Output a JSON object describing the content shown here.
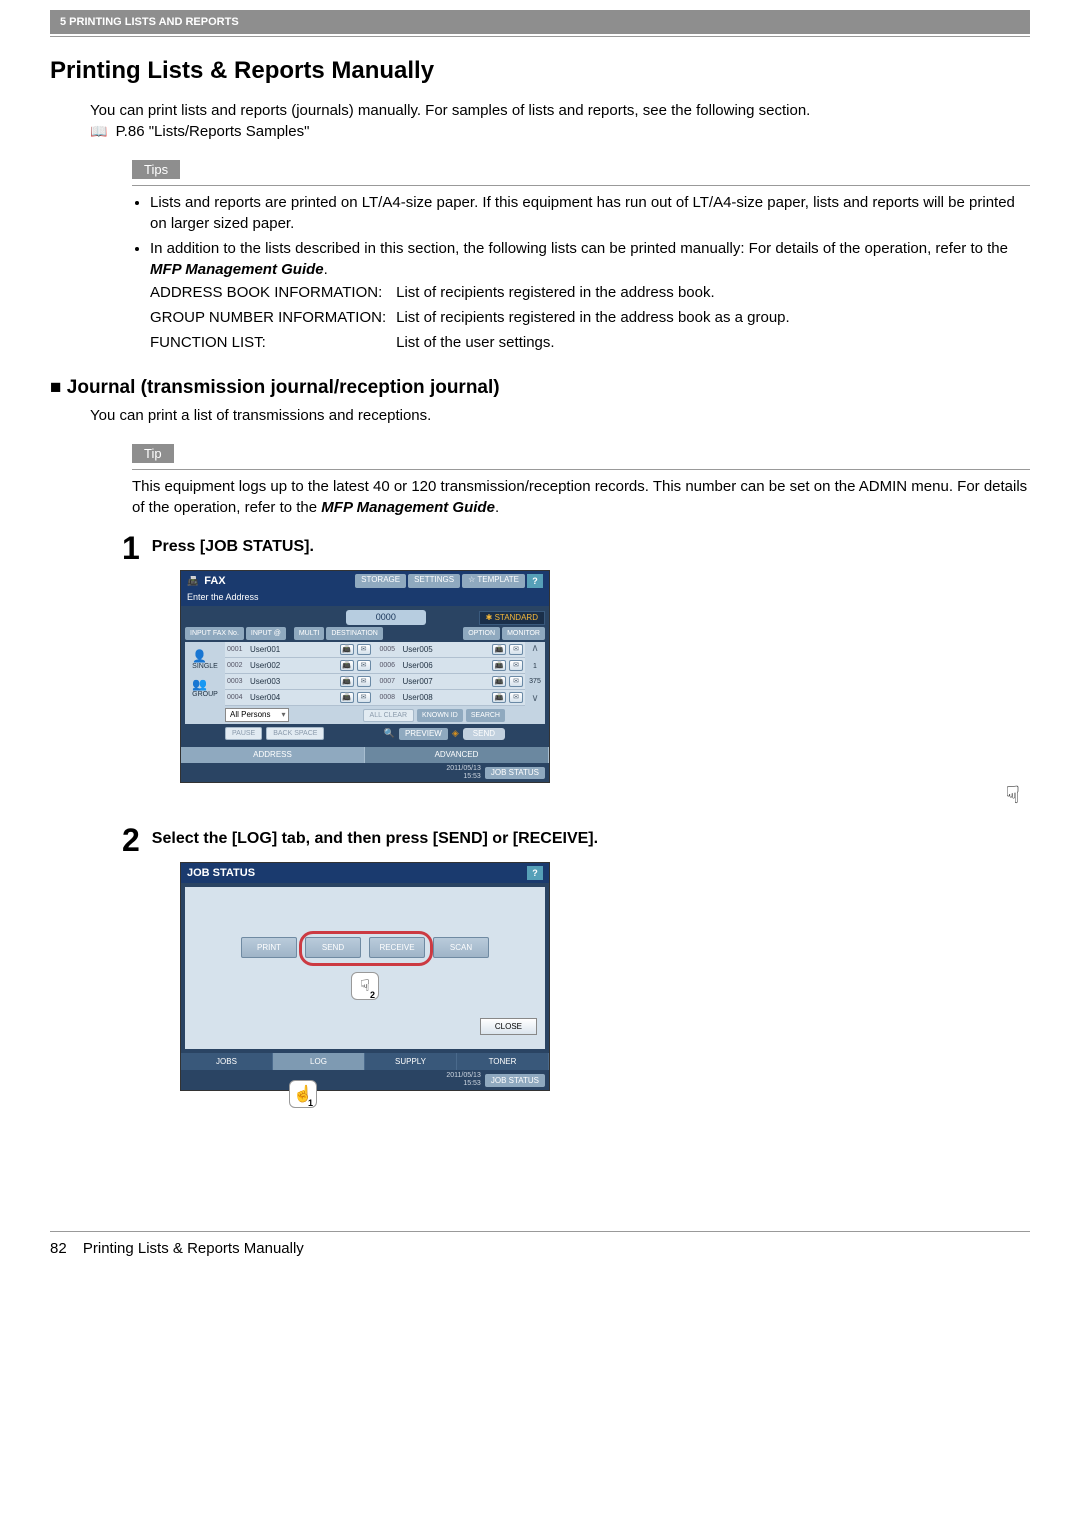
{
  "header": {
    "chapter": "5 PRINTING LISTS AND REPORTS"
  },
  "page": {
    "title": "Printing Lists & Reports Manually",
    "intro1": "You can print lists and reports (journals) manually. For samples of lists and reports, see the following section.",
    "ref_link": "P.86 \"Lists/Reports Samples\"",
    "tips_label": "Tips",
    "tip_label": "Tip",
    "tips": {
      "bullet1": "Lists and reports are printed on LT/A4-size paper. If this equipment has run out of LT/A4-size paper, lists and reports will be printed on larger sized paper.",
      "bullet2_a": "In addition to the lists described in this section, the following lists can be printed manually: For details of the operation, refer to the ",
      "bullet2_b": "MFP Management Guide",
      "bullet2_c": ".",
      "row1_k": "ADDRESS BOOK INFORMATION:",
      "row1_v": "List of recipients registered in the address book.",
      "row2_k": "GROUP NUMBER INFORMATION:",
      "row2_v": "List of recipients registered in the address book as a group.",
      "row3_k": "FUNCTION LIST:",
      "row3_v": "List of the user settings."
    }
  },
  "subsection": {
    "title": "Journal (transmission journal/reception journal)",
    "desc": "You can print a list of transmissions and receptions.",
    "tip_a": "This equipment logs up to the latest 40 or 120 transmission/reception records. This number can be set on the ADMIN menu. For details of the operation, refer to the ",
    "tip_b": "MFP Management Guide",
    "tip_c": "."
  },
  "steps": {
    "s1_num": "1",
    "s1_text": "Press [JOB STATUS].",
    "s2_num": "2",
    "s2_text": "Select the [LOG] tab, and then press [SEND] or [RECEIVE]."
  },
  "fax": {
    "title": "FAX",
    "storage": "STORAGE",
    "settings": "SETTINGS",
    "template": "TEMPLATE",
    "help": "?",
    "enter": "Enter the Address",
    "zero": "0000",
    "standard": "STANDARD",
    "input_fax": "INPUT FAX No.",
    "input_at": "INPUT @",
    "multi": "MULTI",
    "destination": "DESTINATION",
    "option": "OPTION",
    "monitor": "MONITOR",
    "single": "SINGLE",
    "group": "GROUP",
    "rows": [
      {
        "id": "0001",
        "name": "User001",
        "id2": "0005",
        "name2": "User005"
      },
      {
        "id": "0002",
        "name": "User002",
        "id2": "0006",
        "name2": "User006"
      },
      {
        "id": "0003",
        "name": "User003",
        "id2": "0007",
        "name2": "User007"
      },
      {
        "id": "0004",
        "name": "User004",
        "id2": "0008",
        "name2": "User008"
      }
    ],
    "page_top": "1",
    "page_count": "375",
    "all_persons": "All Persons",
    "all_clear": "ALL CLEAR",
    "known_id": "KNOWN ID",
    "search": "SEARCH",
    "pause": "PAUSE",
    "backspace": "BACK SPACE",
    "preview": "PREVIEW",
    "send": "SEND",
    "tab_address": "ADDRESS",
    "tab_advanced": "ADVANCED",
    "timestamp": "2011/05/13\n15:53",
    "job_status": "JOB STATUS"
  },
  "job": {
    "title": "JOB STATUS",
    "help": "?",
    "print": "PRINT",
    "send": "SEND",
    "receive": "RECEIVE",
    "scan": "SCAN",
    "close": "CLOSE",
    "tab_jobs": "JOBS",
    "tab_log": "LOG",
    "tab_supply": "SUPPLY",
    "tab_toner": "TONER",
    "timestamp": "2011/05/13\n15:53",
    "job_status": "JOB STATUS",
    "marker1": "1",
    "marker2": "2"
  },
  "footer": {
    "page_num": "82",
    "title": "Printing Lists & Reports Manually"
  }
}
